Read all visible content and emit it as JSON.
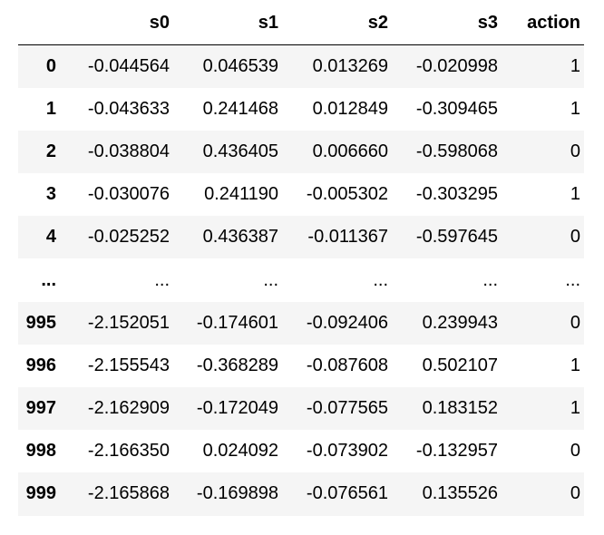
{
  "table": {
    "columns": [
      "s0",
      "s1",
      "s2",
      "s3",
      "action"
    ],
    "rows": [
      {
        "index": "0",
        "cells": [
          "-0.044564",
          "0.046539",
          "0.013269",
          "-0.020998",
          "1"
        ]
      },
      {
        "index": "1",
        "cells": [
          "-0.043633",
          "0.241468",
          "0.012849",
          "-0.309465",
          "1"
        ]
      },
      {
        "index": "2",
        "cells": [
          "-0.038804",
          "0.436405",
          "0.006660",
          "-0.598068",
          "0"
        ]
      },
      {
        "index": "3",
        "cells": [
          "-0.030076",
          "0.241190",
          "-0.005302",
          "-0.303295",
          "1"
        ]
      },
      {
        "index": "4",
        "cells": [
          "-0.025252",
          "0.436387",
          "-0.011367",
          "-0.597645",
          "0"
        ]
      },
      {
        "index": "...",
        "cells": [
          "...",
          "...",
          "...",
          "...",
          "..."
        ]
      },
      {
        "index": "995",
        "cells": [
          "-2.152051",
          "-0.174601",
          "-0.092406",
          "0.239943",
          "0"
        ]
      },
      {
        "index": "996",
        "cells": [
          "-2.155543",
          "-0.368289",
          "-0.087608",
          "0.502107",
          "1"
        ]
      },
      {
        "index": "997",
        "cells": [
          "-2.162909",
          "-0.172049",
          "-0.077565",
          "0.183152",
          "1"
        ]
      },
      {
        "index": "998",
        "cells": [
          "-2.166350",
          "0.024092",
          "-0.073902",
          "-0.132957",
          "0"
        ]
      },
      {
        "index": "999",
        "cells": [
          "-2.165868",
          "-0.169898",
          "-0.076561",
          "0.135526",
          "0"
        ]
      }
    ]
  },
  "colors": {
    "stripe": "#f5f5f5",
    "rule": "#000000",
    "background": "#ffffff"
  }
}
